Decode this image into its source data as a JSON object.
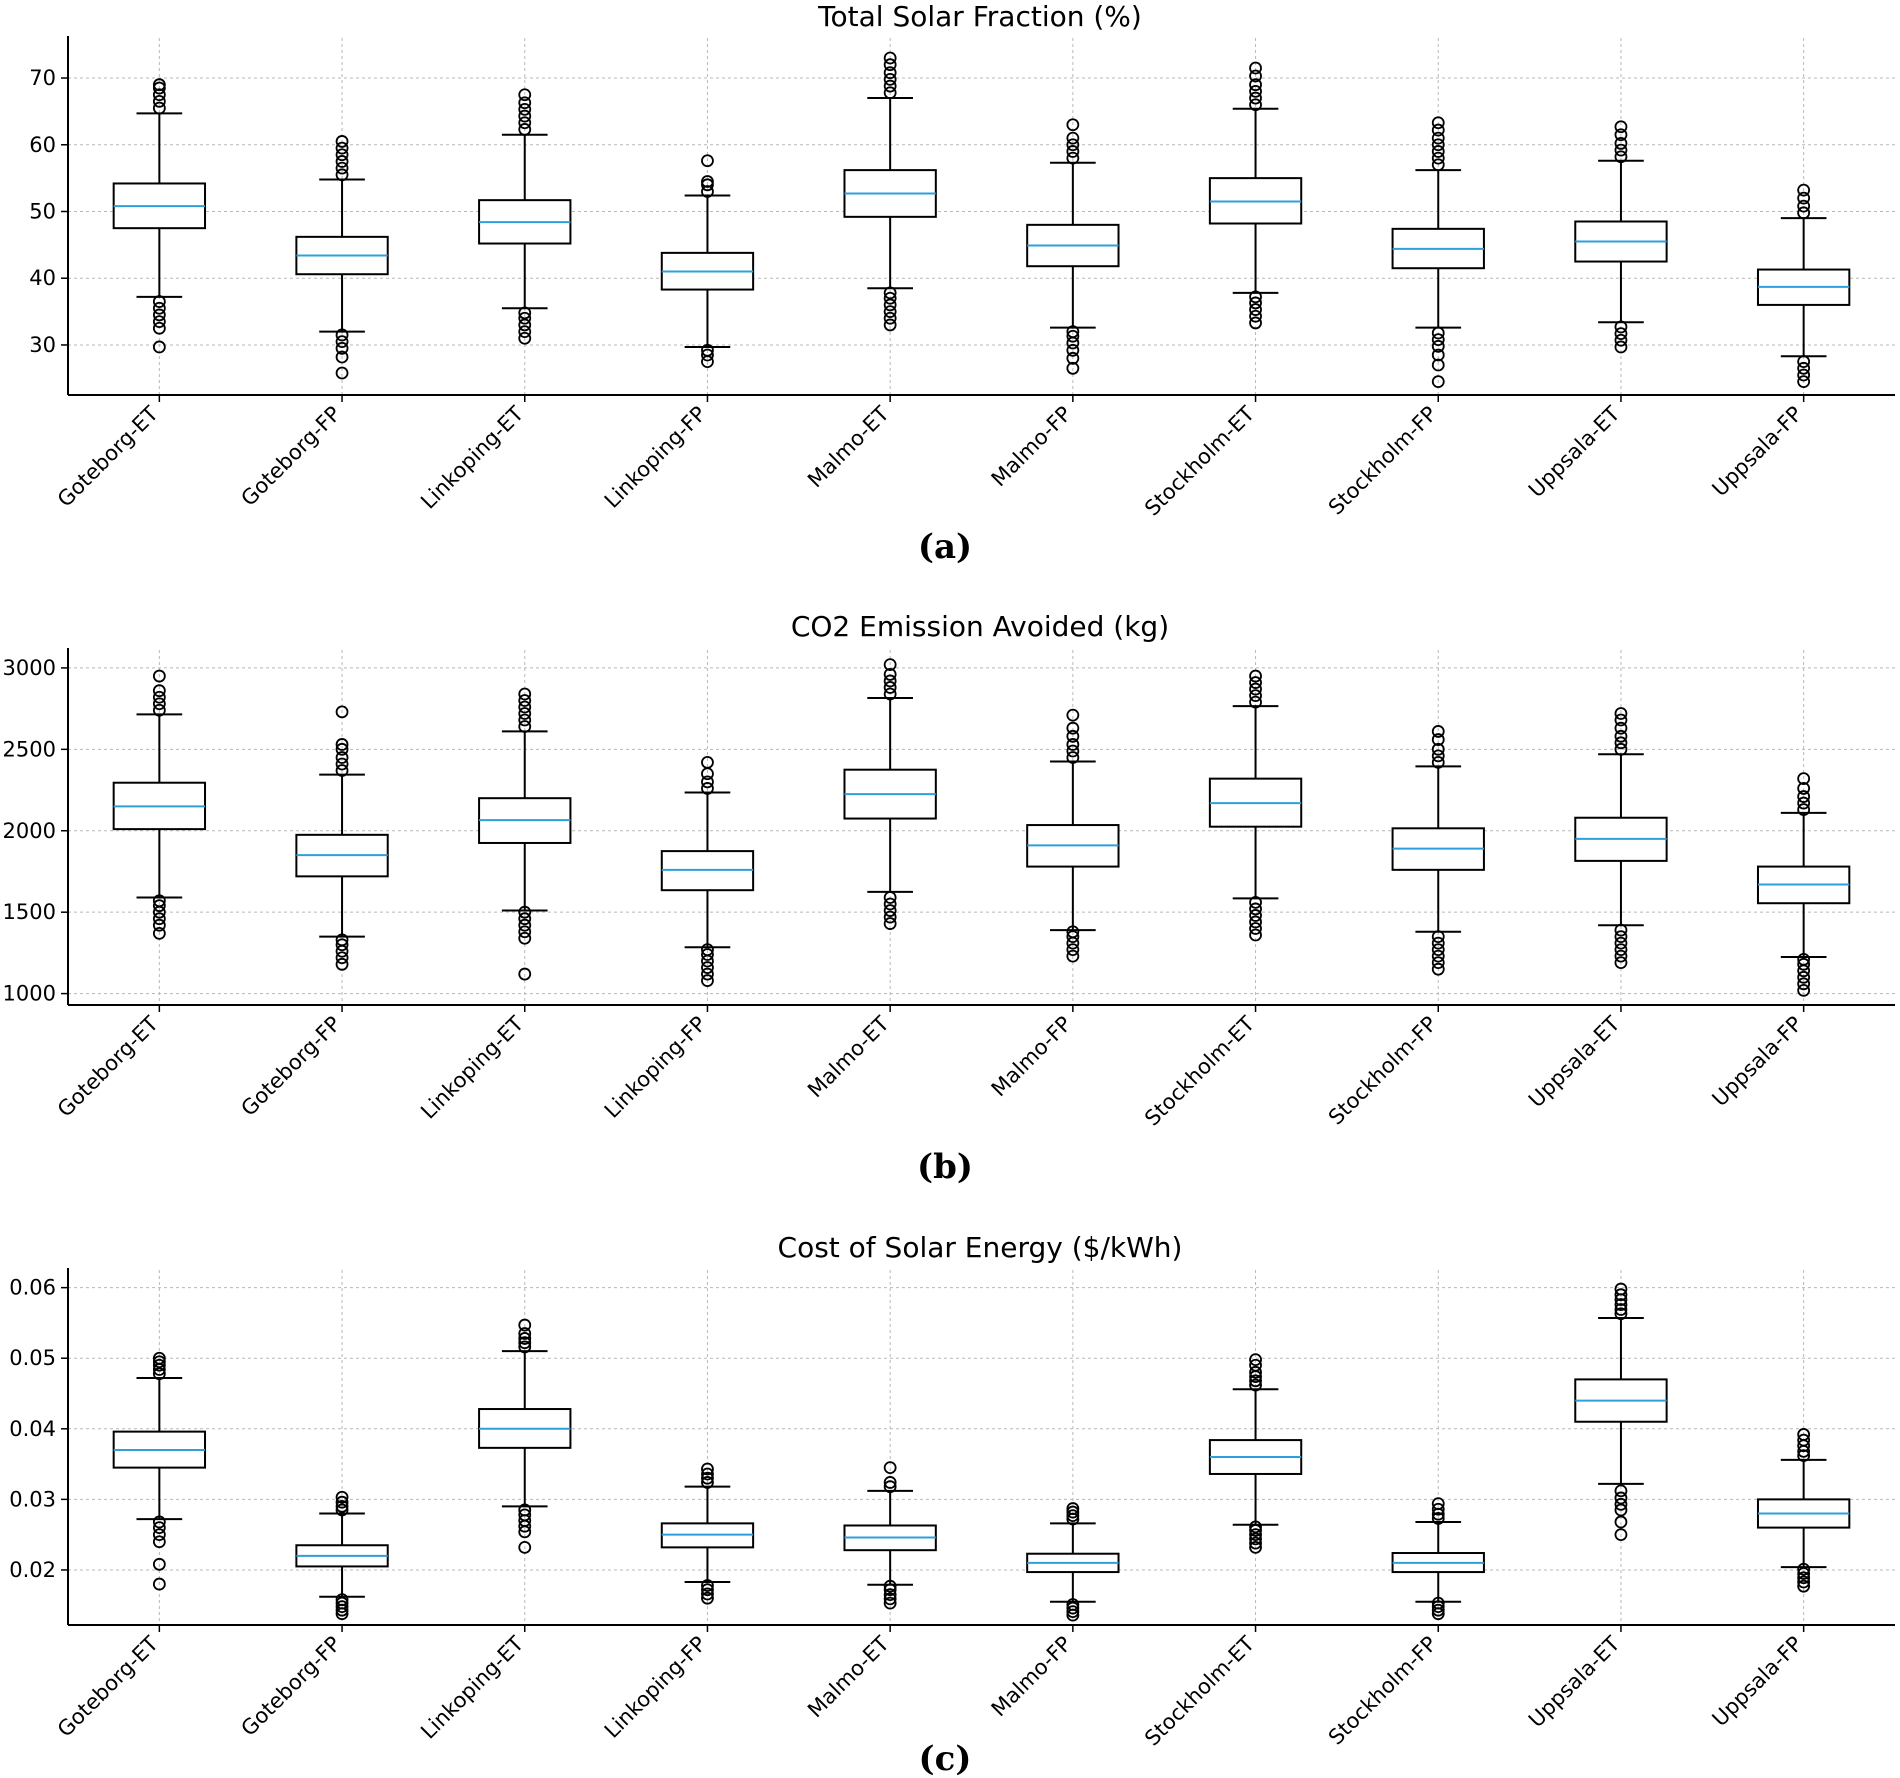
{
  "chart_data": [
    {
      "type": "box",
      "title": "Total Solar Fraction (%)",
      "panel_label": "(a)",
      "categories": [
        "Goteborg-ET",
        "Goteborg-FP",
        "Linkoping-ET",
        "Linkoping-FP",
        "Malmo-ET",
        "Malmo-FP",
        "Stockholm-ET",
        "Stockholm-FP",
        "Uppsala-ET",
        "Uppsala-FP"
      ],
      "yticks": [
        30,
        40,
        50,
        60,
        70
      ],
      "ylim": [
        22.5,
        76
      ],
      "boxes": [
        {
          "q1": 47.5,
          "median": 50.8,
          "q3": 54.2,
          "whisker_low": 37.2,
          "whisker_high": 64.7,
          "outliers_low": [
            29.7,
            32.5,
            33.5,
            34.5,
            35.5,
            36.5
          ],
          "outliers_high": [
            65.5,
            66.5,
            67.5,
            68.5,
            69.0
          ]
        },
        {
          "q1": 40.6,
          "median": 43.4,
          "q3": 46.2,
          "whisker_low": 32.0,
          "whisker_high": 54.8,
          "outliers_low": [
            25.8,
            28.2,
            29.5,
            30.5,
            31.5
          ],
          "outliers_high": [
            55.5,
            56.5,
            57.5,
            58.5,
            59.5,
            60.5
          ]
        },
        {
          "q1": 45.2,
          "median": 48.4,
          "q3": 51.7,
          "whisker_low": 35.5,
          "whisker_high": 61.5,
          "outliers_low": [
            31.0,
            32.0,
            33.0,
            34.0,
            34.8
          ],
          "outliers_high": [
            62.3,
            63.3,
            64.3,
            65.3,
            66.3,
            67.5
          ]
        },
        {
          "q1": 38.3,
          "median": 41.0,
          "q3": 43.8,
          "whisker_low": 29.7,
          "whisker_high": 52.4,
          "outliers_low": [
            27.5,
            28.5,
            29.2
          ],
          "outliers_high": [
            53.0,
            54.0,
            54.5,
            57.6
          ]
        },
        {
          "q1": 49.2,
          "median": 52.7,
          "q3": 56.2,
          "whisker_low": 38.5,
          "whisker_high": 67.0,
          "outliers_low": [
            33.0,
            34.0,
            35.0,
            36.0,
            37.0,
            37.8
          ],
          "outliers_high": [
            67.8,
            68.8,
            69.8,
            70.8,
            72.0,
            73.0
          ]
        },
        {
          "q1": 41.8,
          "median": 44.9,
          "q3": 48.0,
          "whisker_low": 32.6,
          "whisker_high": 57.3,
          "outliers_low": [
            26.5,
            28.0,
            29.2,
            30.3,
            31.3,
            32.0
          ],
          "outliers_high": [
            58.0,
            59.0,
            60.0,
            61.0,
            63.0
          ]
        },
        {
          "q1": 48.2,
          "median": 51.5,
          "q3": 55.0,
          "whisker_low": 37.8,
          "whisker_high": 65.4,
          "outliers_low": [
            33.3,
            34.3,
            35.3,
            36.3,
            37.2
          ],
          "outliers_high": [
            66.0,
            67.0,
            68.0,
            69.0,
            70.3,
            71.5
          ]
        },
        {
          "q1": 41.5,
          "median": 44.4,
          "q3": 47.4,
          "whisker_low": 32.6,
          "whisker_high": 56.2,
          "outliers_low": [
            24.5,
            27.0,
            28.5,
            29.8,
            30.8,
            31.8
          ],
          "outliers_high": [
            57.0,
            58.0,
            59.0,
            60.0,
            61.0,
            62.2,
            63.3
          ]
        },
        {
          "q1": 42.5,
          "median": 45.5,
          "q3": 48.5,
          "whisker_low": 33.4,
          "whisker_high": 57.6,
          "outliers_low": [
            29.7,
            30.7,
            31.7,
            32.7
          ],
          "outliers_high": [
            58.2,
            59.2,
            60.2,
            61.5,
            62.7
          ]
        },
        {
          "q1": 36.0,
          "median": 38.7,
          "q3": 41.3,
          "whisker_low": 28.3,
          "whisker_high": 49.0,
          "outliers_low": [
            24.5,
            25.5,
            26.5,
            27.5
          ],
          "outliers_high": [
            49.8,
            50.8,
            52.0,
            53.2
          ]
        }
      ]
    },
    {
      "type": "box",
      "title": "CO2 Emission Avoided (kg)",
      "panel_label": "(b)",
      "categories": [
        "Goteborg-ET",
        "Goteborg-FP",
        "Linkoping-ET",
        "Linkoping-FP",
        "Malmo-ET",
        "Malmo-FP",
        "Stockholm-ET",
        "Stockholm-FP",
        "Uppsala-ET",
        "Uppsala-FP"
      ],
      "yticks": [
        1000,
        1500,
        2000,
        2500,
        3000
      ],
      "ylim": [
        930,
        3110
      ],
      "boxes": [
        {
          "q1": 2010,
          "median": 2150,
          "q3": 2295,
          "whisker_low": 1590,
          "whisker_high": 2715,
          "outliers_low": [
            1370,
            1420,
            1460,
            1500,
            1540,
            1570
          ],
          "outliers_high": [
            2740,
            2780,
            2820,
            2860,
            2950
          ]
        },
        {
          "q1": 1720,
          "median": 1850,
          "q3": 1975,
          "whisker_low": 1350,
          "whisker_high": 2345,
          "outliers_low": [
            1180,
            1220,
            1260,
            1300,
            1330
          ],
          "outliers_high": [
            2370,
            2410,
            2450,
            2500,
            2530,
            2730
          ]
        },
        {
          "q1": 1925,
          "median": 2065,
          "q3": 2200,
          "whisker_low": 1510,
          "whisker_high": 2610,
          "outliers_low": [
            1120,
            1340,
            1380,
            1420,
            1460,
            1500
          ],
          "outliers_high": [
            2640,
            2680,
            2720,
            2760,
            2800,
            2840
          ]
        },
        {
          "q1": 1635,
          "median": 1760,
          "q3": 1875,
          "whisker_low": 1285,
          "whisker_high": 2235,
          "outliers_low": [
            1080,
            1120,
            1160,
            1200,
            1240,
            1270
          ],
          "outliers_high": [
            2260,
            2300,
            2350,
            2420
          ]
        },
        {
          "q1": 2075,
          "median": 2225,
          "q3": 2375,
          "whisker_low": 1625,
          "whisker_high": 2815,
          "outliers_low": [
            1430,
            1470,
            1510,
            1550,
            1590
          ],
          "outliers_high": [
            2840,
            2880,
            2920,
            2960,
            3020
          ]
        },
        {
          "q1": 1780,
          "median": 1910,
          "q3": 2035,
          "whisker_low": 1390,
          "whisker_high": 2425,
          "outliers_low": [
            1230,
            1270,
            1310,
            1350,
            1380
          ],
          "outliers_high": [
            2450,
            2490,
            2530,
            2580,
            2630,
            2710
          ]
        },
        {
          "q1": 2025,
          "median": 2170,
          "q3": 2320,
          "whisker_low": 1585,
          "whisker_high": 2765,
          "outliers_low": [
            1360,
            1400,
            1440,
            1480,
            1520,
            1560
          ],
          "outliers_high": [
            2790,
            2830,
            2870,
            2910,
            2950
          ]
        },
        {
          "q1": 1760,
          "median": 1890,
          "q3": 2015,
          "whisker_low": 1380,
          "whisker_high": 2395,
          "outliers_low": [
            1150,
            1190,
            1230,
            1270,
            1310,
            1350
          ],
          "outliers_high": [
            2420,
            2460,
            2500,
            2560,
            2610
          ]
        },
        {
          "q1": 1815,
          "median": 1950,
          "q3": 2080,
          "whisker_low": 1420,
          "whisker_high": 2470,
          "outliers_low": [
            1190,
            1230,
            1270,
            1310,
            1350,
            1390
          ],
          "outliers_high": [
            2500,
            2540,
            2580,
            2630,
            2680,
            2720
          ]
        },
        {
          "q1": 1555,
          "median": 1670,
          "q3": 1780,
          "whisker_low": 1225,
          "whisker_high": 2110,
          "outliers_low": [
            1020,
            1060,
            1100,
            1140,
            1180,
            1210
          ],
          "outliers_high": [
            2130,
            2170,
            2210,
            2260,
            2320
          ]
        }
      ]
    },
    {
      "type": "box",
      "title": "Cost of Solar Energy ($/kWh)",
      "panel_label": "(c)",
      "categories": [
        "Goteborg-ET",
        "Goteborg-FP",
        "Linkoping-ET",
        "Linkoping-FP",
        "Malmo-ET",
        "Malmo-FP",
        "Stockholm-ET",
        "Stockholm-FP",
        "Uppsala-ET",
        "Uppsala-FP"
      ],
      "yticks": [
        "0.02",
        "0.03",
        "0.04",
        "0.05",
        "0.06"
      ],
      "ylim": [
        0.0122,
        0.0625
      ],
      "boxes": [
        {
          "q1": 0.0345,
          "median": 0.037,
          "q3": 0.0396,
          "whisker_low": 0.0272,
          "whisker_high": 0.0472,
          "outliers_low": [
            0.018,
            0.0208,
            0.024,
            0.025,
            0.026,
            0.0268
          ],
          "outliers_high": [
            0.0478,
            0.0484,
            0.049,
            0.0495,
            0.05
          ]
        },
        {
          "q1": 0.0205,
          "median": 0.022,
          "q3": 0.0235,
          "whisker_low": 0.0162,
          "whisker_high": 0.028,
          "outliers_low": [
            0.0138,
            0.0143,
            0.0148,
            0.0153,
            0.0158
          ],
          "outliers_high": [
            0.0285,
            0.029,
            0.0296,
            0.0303
          ]
        },
        {
          "q1": 0.0373,
          "median": 0.04,
          "q3": 0.0428,
          "whisker_low": 0.029,
          "whisker_high": 0.051,
          "outliers_low": [
            0.0232,
            0.0254,
            0.0262,
            0.027,
            0.0278,
            0.0285
          ],
          "outliers_high": [
            0.0516,
            0.0522,
            0.0528,
            0.0535,
            0.0547
          ]
        },
        {
          "q1": 0.0232,
          "median": 0.025,
          "q3": 0.0266,
          "whisker_low": 0.0183,
          "whisker_high": 0.0318,
          "outliers_low": [
            0.016,
            0.0166,
            0.0172,
            0.0178
          ],
          "outliers_high": [
            0.0324,
            0.033,
            0.0336,
            0.0343
          ]
        },
        {
          "q1": 0.0228,
          "median": 0.0246,
          "q3": 0.0263,
          "whisker_low": 0.0179,
          "whisker_high": 0.0312,
          "outliers_low": [
            0.0153,
            0.0159,
            0.0165,
            0.0172,
            0.0177
          ],
          "outliers_high": [
            0.0318,
            0.0324,
            0.0345
          ]
        },
        {
          "q1": 0.0197,
          "median": 0.021,
          "q3": 0.0223,
          "whisker_low": 0.0155,
          "whisker_high": 0.0266,
          "outliers_low": [
            0.0136,
            0.0141,
            0.0146,
            0.0151
          ],
          "outliers_high": [
            0.0272,
            0.0277,
            0.0282,
            0.0287
          ]
        },
        {
          "q1": 0.0336,
          "median": 0.036,
          "q3": 0.0384,
          "whisker_low": 0.0264,
          "whisker_high": 0.0456,
          "outliers_low": [
            0.0232,
            0.0238,
            0.0244,
            0.025,
            0.0256,
            0.0261
          ],
          "outliers_high": [
            0.0462,
            0.0468,
            0.0474,
            0.048,
            0.049,
            0.0498
          ]
        },
        {
          "q1": 0.0197,
          "median": 0.021,
          "q3": 0.0224,
          "whisker_low": 0.0155,
          "whisker_high": 0.0268,
          "outliers_low": [
            0.0138,
            0.0143,
            0.0148,
            0.0153
          ],
          "outliers_high": [
            0.0273,
            0.0279,
            0.0286,
            0.0294
          ]
        },
        {
          "q1": 0.041,
          "median": 0.044,
          "q3": 0.047,
          "whisker_low": 0.0322,
          "whisker_high": 0.0557,
          "outliers_low": [
            0.025,
            0.0268,
            0.0285,
            0.0293,
            0.0302,
            0.0312
          ],
          "outliers_high": [
            0.0563,
            0.0569,
            0.0576,
            0.0583,
            0.059,
            0.0598
          ]
        },
        {
          "q1": 0.026,
          "median": 0.028,
          "q3": 0.03,
          "whisker_low": 0.0204,
          "whisker_high": 0.0356,
          "outliers_low": [
            0.0177,
            0.0183,
            0.0189,
            0.0195,
            0.0201
          ],
          "outliers_high": [
            0.0362,
            0.0368,
            0.0376,
            0.0384,
            0.0392
          ]
        }
      ]
    }
  ]
}
